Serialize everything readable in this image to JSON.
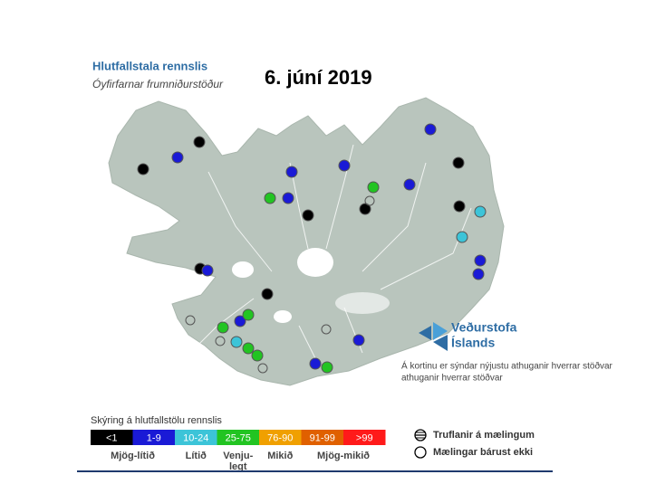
{
  "header": {
    "title": "Hlutfallstala rennslis",
    "subtitle": "Óyfirfarnar frumniðurstöður",
    "date": "6. júní 2019"
  },
  "logo": {
    "lines": [
      "Veðurstofa",
      "Íslands"
    ]
  },
  "note": [
    "Á kortinu er sýndar nýjustu athuganir hverrar stöðvar",
    "athuganir hverrar stöðvar"
  ],
  "legend": {
    "title": "Skýring á hlutfallstölu rennslis",
    "bins": [
      {
        "label": "<1",
        "color": "#000000"
      },
      {
        "label": "1-9",
        "color": "#1a1ad6"
      },
      {
        "label": "10-24",
        "color": "#3cc4d8"
      },
      {
        "label": "25-75",
        "color": "#22c422"
      },
      {
        "label": "76-90",
        "color": "#f0a000"
      },
      {
        "label": "91-99",
        "color": "#e06000"
      },
      {
        "label": ">99",
        "color": "#ff1a1a"
      }
    ],
    "categories": [
      {
        "lines": [
          "Mjög-lítið"
        ]
      },
      {
        "lines": [
          "Lítið"
        ]
      },
      {
        "lines": [
          "Venju-",
          "legt"
        ]
      },
      {
        "lines": [
          "Mikið"
        ]
      },
      {
        "lines": [
          "Mjög-mikið"
        ]
      }
    ],
    "symbols": [
      "Truflanir á mælingum",
      "Mælingar bárust ekki"
    ]
  }
}
